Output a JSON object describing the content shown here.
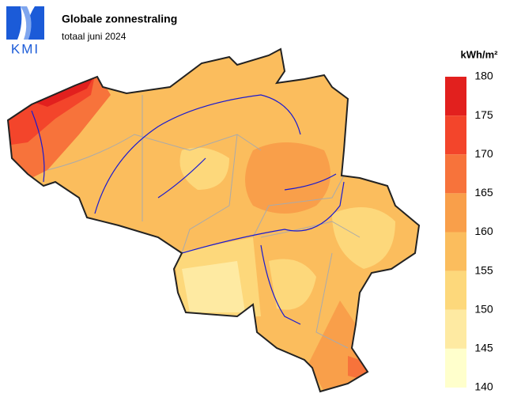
{
  "header": {
    "title": "Globale zonnestraling",
    "subtitle": "totaal juni 2024"
  },
  "logo": {
    "text": "KMI"
  },
  "legend": {
    "unit": "kWh/m²",
    "ticks": [
      180,
      175,
      170,
      165,
      160,
      155,
      150,
      145,
      140
    ],
    "colors": [
      "#e2201e",
      "#f3452b",
      "#f7733b",
      "#f99f4a",
      "#fbbd5d",
      "#fdd87b",
      "#feeaa2",
      "#ffffcc"
    ]
  }
}
